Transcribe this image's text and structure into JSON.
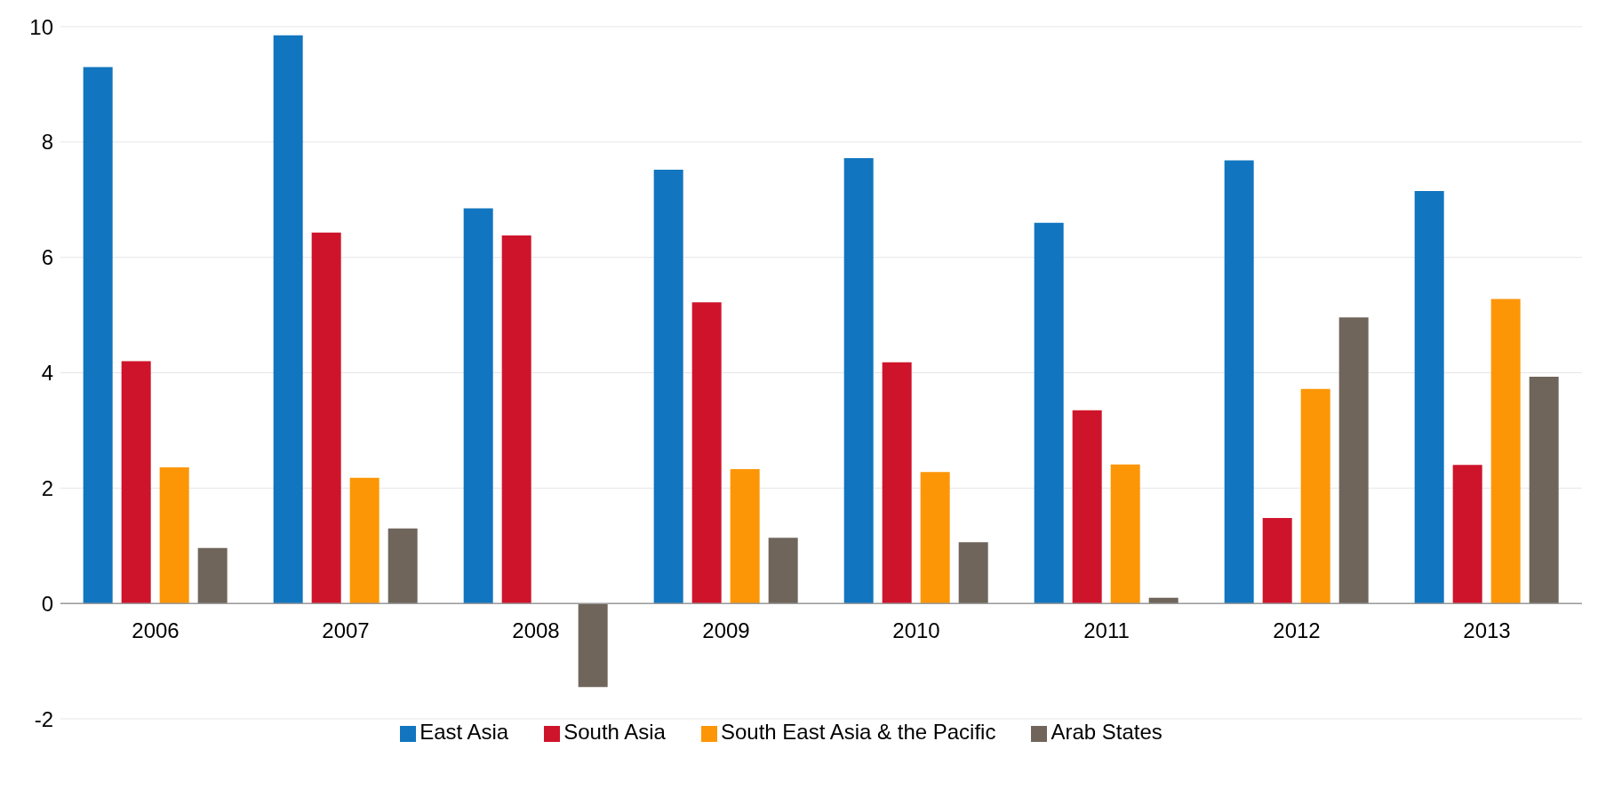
{
  "chart_data": {
    "type": "bar",
    "categories": [
      "2006",
      "2007",
      "2008",
      "2009",
      "2010",
      "2011",
      "2012",
      "2013"
    ],
    "series": [
      {
        "name": "East Asia",
        "color": "#1175bf",
        "values": [
          9.3,
          9.85,
          6.85,
          7.52,
          7.72,
          6.6,
          7.68,
          7.15
        ]
      },
      {
        "name": "South Asia",
        "color": "#ce142b",
        "values": [
          4.2,
          6.43,
          6.38,
          5.22,
          4.18,
          3.35,
          1.48,
          2.4
        ]
      },
      {
        "name": "South East Asia & the Pacific",
        "color": "#fd9606",
        "values": [
          2.36,
          2.18,
          null,
          2.33,
          2.28,
          2.41,
          3.72,
          5.28
        ]
      },
      {
        "name": "Arab States",
        "color": "#6f655b",
        "values": [
          0.96,
          1.3,
          -1.45,
          1.14,
          1.06,
          0.1,
          4.96,
          3.93
        ]
      }
    ],
    "ylim": [
      -2,
      10
    ],
    "yticks": [
      -2,
      0,
      2,
      4,
      6,
      8,
      10
    ],
    "grid": "y",
    "legend": "bottom"
  }
}
